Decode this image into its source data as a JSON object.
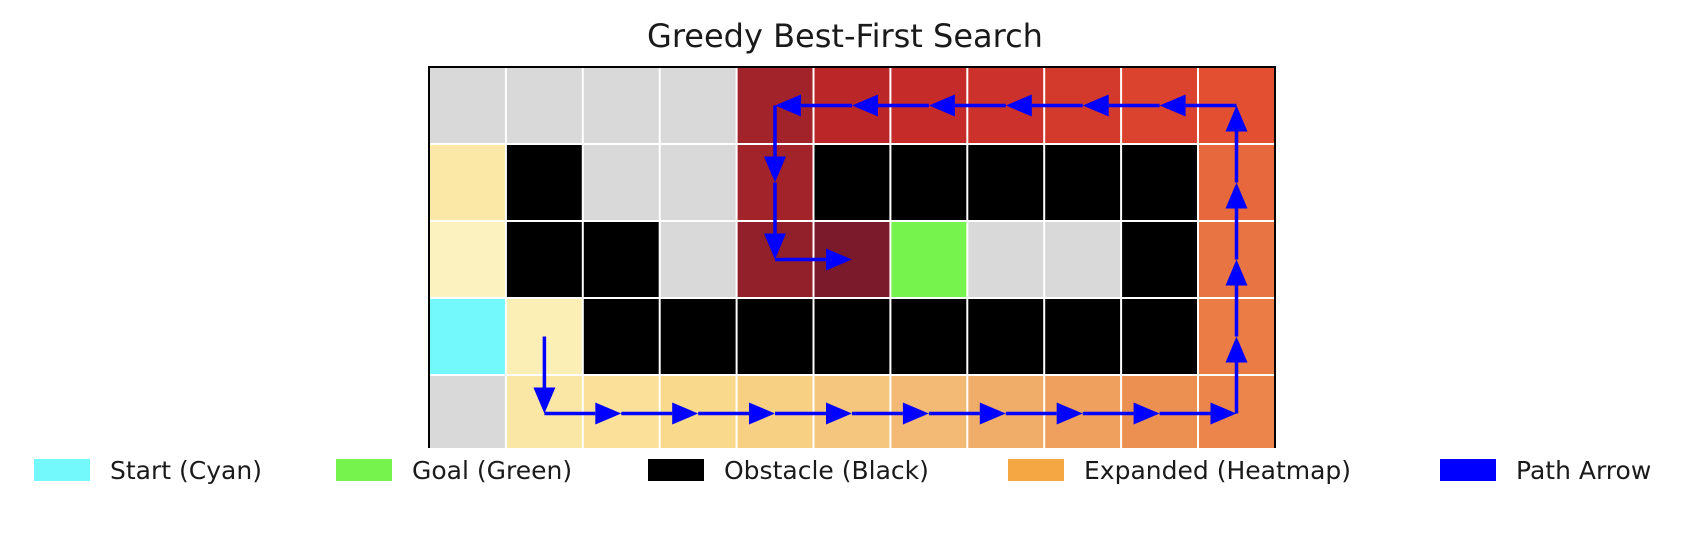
{
  "title": "Greedy Best-First Search",
  "grid": {
    "rows": 5,
    "cols": 11,
    "colors": {
      "empty": "#d9d9d9",
      "obstacle": "#000000",
      "start": "#73f8fb",
      "goal": "#76f34c",
      "path_arrow": "#0000ff",
      "gridline": "#ffffff",
      "border": "#000000"
    },
    "cells": [
      [
        "empty",
        "empty",
        "empty",
        "empty",
        "#a3232a",
        "#bb2629",
        "#c42b29",
        "#cc322b",
        "#d43a2c",
        "#dc432e",
        "#e24f31"
      ],
      [
        "#fbe8a6",
        "obstacle",
        "empty",
        "empty",
        "#a3232a",
        "obstacle",
        "obstacle",
        "obstacle",
        "obstacle",
        "obstacle",
        "#e6683c"
      ],
      [
        "#fcf2c0",
        "obstacle",
        "obstacle",
        "empty",
        "#92202a",
        "#7a1a2a",
        "goal",
        "empty",
        "empty",
        "obstacle",
        "#e97443"
      ],
      [
        "start",
        "#fbefb5",
        "obstacle",
        "obstacle",
        "obstacle",
        "obstacle",
        "obstacle",
        "obstacle",
        "obstacle",
        "obstacle",
        "#eb7c46"
      ],
      [
        "empty",
        "#fbe7a5",
        "#fbe09a",
        "#f9d98c",
        "#f7d084",
        "#f5c67d",
        "#f2ba74",
        "#f0ad6a",
        "#ef9f5e",
        "#ec9052",
        "#eb854b"
      ]
    ],
    "path": [
      [
        3,
        1
      ],
      [
        4,
        1
      ],
      [
        4,
        2
      ],
      [
        4,
        3
      ],
      [
        4,
        4
      ],
      [
        4,
        5
      ],
      [
        4,
        6
      ],
      [
        4,
        7
      ],
      [
        4,
        8
      ],
      [
        4,
        9
      ],
      [
        4,
        10
      ],
      [
        3,
        10
      ],
      [
        2,
        10
      ],
      [
        1,
        10
      ],
      [
        0,
        10
      ],
      [
        0,
        9
      ],
      [
        0,
        8
      ],
      [
        0,
        7
      ],
      [
        0,
        6
      ],
      [
        0,
        5
      ],
      [
        0,
        4
      ],
      [
        1,
        4
      ],
      [
        2,
        4
      ],
      [
        2,
        5
      ]
    ]
  },
  "legend": [
    {
      "label": "Start (Cyan)",
      "color": "#73f8fb"
    },
    {
      "label": "Goal (Green)",
      "color": "#76f34c"
    },
    {
      "label": "Obstacle (Black)",
      "color": "#000000"
    },
    {
      "label": "Expanded (Heatmap)",
      "color": "#f4a742"
    },
    {
      "label": "Path Arrow",
      "color": "#0000ff"
    }
  ]
}
